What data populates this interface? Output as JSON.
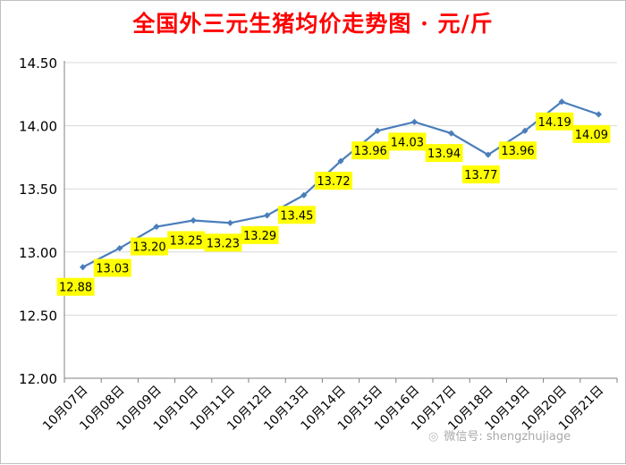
{
  "chart_data": {
    "type": "line",
    "title": "全国外三元生猪均价走势图 · 元/斤",
    "categories": [
      "10月07日",
      "10月08日",
      "10月09日",
      "10月10日",
      "10月11日",
      "10月12日",
      "10月13日",
      "10月14日",
      "10月15日",
      "10月16日",
      "10月17日",
      "10月18日",
      "10月19日",
      "10月20日",
      "10月21日"
    ],
    "values": [
      12.88,
      13.03,
      13.2,
      13.25,
      13.23,
      13.29,
      13.45,
      13.72,
      13.96,
      14.03,
      13.94,
      13.77,
      13.96,
      14.19,
      14.09
    ],
    "value_labels": [
      "12.88",
      "13.03",
      "13.20",
      "13.25",
      "13.23",
      "13.29",
      "13.45",
      "13.72",
      "13.96",
      "14.03",
      "13.94",
      "13.77",
      "13.96",
      "14.19",
      "14.09"
    ],
    "y_ticks": [
      "12.00",
      "12.50",
      "13.00",
      "13.50",
      "14.00",
      "14.50"
    ],
    "ylim": [
      12.0,
      14.5
    ],
    "grid": true,
    "legend": "none",
    "colors": {
      "line": "#4a7ebb",
      "label_bg": "#ffff00",
      "title": "#ff0000"
    }
  },
  "watermark": {
    "icon": "wechat-icon",
    "text": "微信号: shengzhujiage"
  }
}
